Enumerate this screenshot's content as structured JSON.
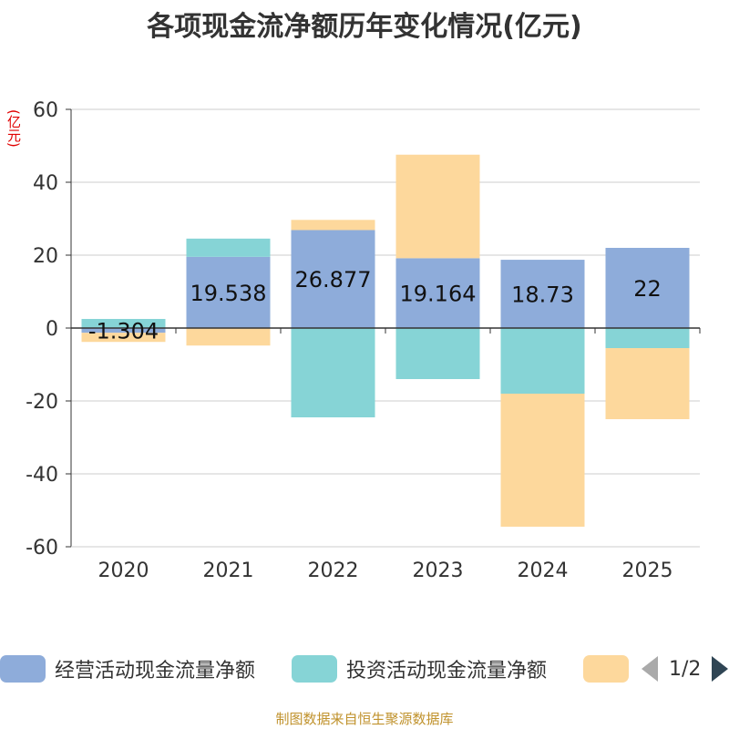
{
  "colors": {
    "operating": "#8eacda",
    "investing": "#86d4d6",
    "financing": "#fdd89c",
    "grid": "#cccccc",
    "axis": "#333333",
    "ylabel": "#e00000",
    "footer": "#c0922c"
  },
  "legend_pager": {
    "text": "1/2",
    "prev_icon": "arrow-left-icon",
    "next_icon": "arrow-right-icon"
  },
  "footer": "制图数据来自恒生聚源数据库",
  "chart_data": {
    "type": "bar",
    "stacked": true,
    "title": "各项现金流净额历年变化情况(亿元)",
    "ylabel": "(亿元)",
    "xlabel": "",
    "ylim": [
      -60,
      60
    ],
    "yticks": [
      -60,
      -40,
      -20,
      0,
      20,
      40,
      60
    ],
    "grid": true,
    "legend_position": "bottom",
    "categories": [
      "2020",
      "2021",
      "2022",
      "2023",
      "2024",
      "2025"
    ],
    "series": [
      {
        "name": "经营活动现金流量净额",
        "color_key": "operating",
        "values": [
          -1.304,
          19.538,
          26.877,
          19.164,
          18.73,
          22
        ],
        "labels": [
          "-1.304",
          "19.538",
          "26.877",
          "19.164",
          "18.73",
          "22"
        ]
      },
      {
        "name": "投资活动现金流量净额",
        "color_key": "investing",
        "values": [
          2.5,
          5,
          -24.5,
          -14,
          -18,
          -5.5
        ]
      },
      {
        "name": "",
        "color_key": "financing",
        "values": [
          -2.5,
          -4.8,
          2.8,
          28.4,
          -36.5,
          -19.5
        ]
      }
    ]
  }
}
